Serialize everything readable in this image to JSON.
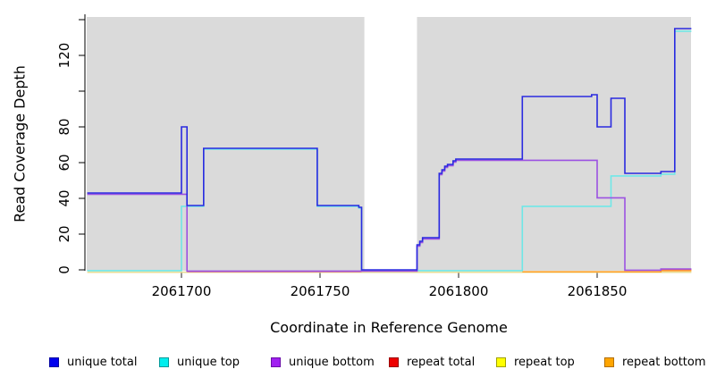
{
  "chart_data": {
    "type": "line",
    "subtype": "step-coverage",
    "title": "",
    "xlabel": "Coordinate in Reference Genome",
    "ylabel": "Read Coverage Depth",
    "x_range": [
      2061666,
      2061884
    ],
    "y_range": [
      0,
      140
    ],
    "grid": false,
    "plot_bg_color": "#DADADA",
    "mask_band": {
      "x_start": 2061766,
      "x_end": 2061785,
      "color": "#FFFFFF"
    },
    "x_ticks": [
      {
        "value": 2061700,
        "label": "2061700"
      },
      {
        "value": 2061750,
        "label": "2061750"
      },
      {
        "value": 2061800,
        "label": "2061800"
      },
      {
        "value": 2061850,
        "label": "2061850"
      }
    ],
    "y_ticks": [
      {
        "value": 0,
        "label": "0"
      },
      {
        "value": 20,
        "label": "20"
      },
      {
        "value": 40,
        "label": "40"
      },
      {
        "value": 60,
        "label": "60"
      },
      {
        "value": 80,
        "label": "80"
      },
      {
        "value": 100,
        "label": ""
      },
      {
        "value": 120,
        "label": "120"
      },
      {
        "value": 140,
        "label": ""
      }
    ],
    "legend_position": "bottom",
    "series": [
      {
        "key": "unique_total",
        "name": "unique total",
        "color": "#0000EE",
        "border_color": "#0000A0",
        "render_color": "#2A2AE0",
        "segments": [
          [
            [
              2061666,
              43
            ],
            [
              2061700,
              80
            ],
            [
              2061702,
              36
            ],
            [
              2061708,
              68
            ],
            [
              2061749,
              36
            ],
            [
              2061764,
              35
            ],
            [
              2061765,
              0
            ],
            [
              2061785,
              14
            ],
            [
              2061786,
              16
            ],
            [
              2061787,
              18
            ],
            [
              2061793,
              54
            ],
            [
              2061794,
              56
            ],
            [
              2061795,
              58
            ],
            [
              2061796,
              59
            ],
            [
              2061798,
              61
            ],
            [
              2061799,
              62
            ],
            [
              2061823,
              97
            ],
            [
              2061848,
              98
            ],
            [
              2061850,
              80
            ],
            [
              2061855,
              96
            ],
            [
              2061860,
              54
            ],
            [
              2061873,
              55
            ],
            [
              2061878,
              135
            ],
            [
              2061884,
              135
            ]
          ]
        ]
      },
      {
        "key": "unique_top",
        "name": "unique top",
        "color": "#00EEEE",
        "border_color": "#009999",
        "render_color": "#6FE7E7",
        "segments": [
          [
            [
              2061666,
              0
            ],
            [
              2061700,
              36
            ],
            [
              2061708,
              68
            ],
            [
              2061749,
              36
            ],
            [
              2061764,
              35
            ],
            [
              2061765,
              0
            ],
            [
              2061823,
              36
            ],
            [
              2061855,
              53
            ],
            [
              2061873,
              54
            ],
            [
              2061878,
              134
            ],
            [
              2061884,
              134
            ]
          ]
        ]
      },
      {
        "key": "unique_bottom",
        "name": "unique bottom",
        "color": "#A020F0",
        "border_color": "#6A0DA8",
        "render_color": "#9C52E2",
        "segments": [
          [
            [
              2061666,
              43
            ],
            [
              2061702,
              0
            ],
            [
              2061785,
              14
            ],
            [
              2061786,
              16
            ],
            [
              2061787,
              18
            ],
            [
              2061793,
              54
            ],
            [
              2061794,
              56
            ],
            [
              2061795,
              58
            ],
            [
              2061796,
              59
            ],
            [
              2061798,
              61
            ],
            [
              2061799,
              62
            ],
            [
              2061850,
              41
            ],
            [
              2061860,
              0.5
            ],
            [
              2061873,
              1.2
            ],
            [
              2061884,
              1.2
            ]
          ]
        ]
      },
      {
        "key": "repeat_total",
        "name": "repeat total",
        "color": "#EE0000",
        "border_color": "#990000",
        "render_color": "#E25577",
        "segments": [
          [
            [
              2061702,
              0
            ],
            [
              2061765,
              0
            ]
          ],
          [
            [
              2061873,
              1
            ],
            [
              2061884,
              1
            ]
          ]
        ]
      },
      {
        "key": "repeat_top",
        "name": "repeat top",
        "color": "#FFFF00",
        "border_color": "#A0A000",
        "render_color": "#E9DD96",
        "segments": [
          [
            [
              2061666,
              0
            ],
            [
              2061884,
              0
            ]
          ]
        ]
      },
      {
        "key": "repeat_bottom",
        "name": "repeat bottom",
        "color": "#FFA500",
        "border_color": "#B26E00",
        "render_color": "#FFA028",
        "segments": [
          [
            [
              2061823,
              0
            ],
            [
              2061873,
              0.6
            ],
            [
              2061884,
              0.6
            ]
          ]
        ]
      }
    ]
  }
}
